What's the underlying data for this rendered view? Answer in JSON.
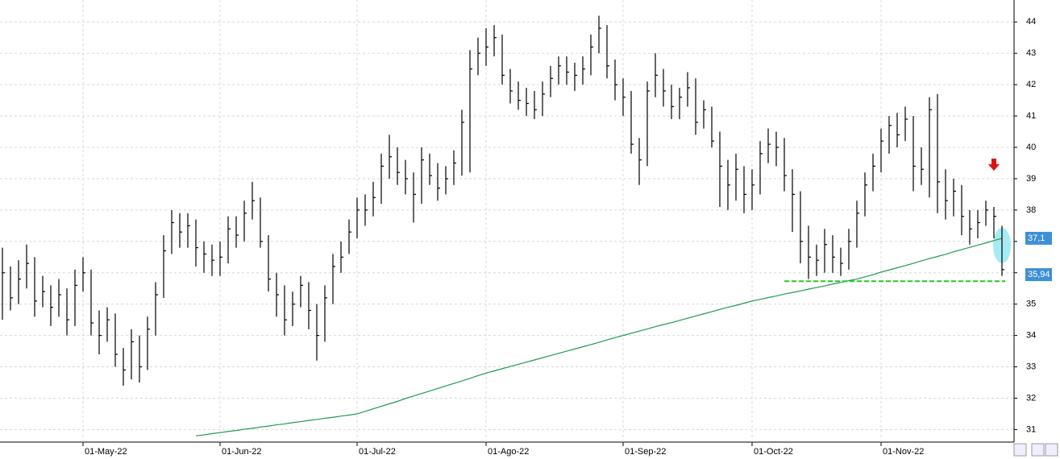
{
  "chart_data": {
    "type": "ohlc",
    "categories": [
      null,
      null,
      null,
      null,
      null,
      null,
      null,
      null,
      null,
      null,
      "01-May-22",
      null,
      null,
      null,
      null,
      null,
      null,
      null,
      null,
      null,
      null,
      null,
      null,
      null,
      null,
      null,
      null,
      "01-Jun-22",
      null,
      null,
      null,
      null,
      null,
      null,
      null,
      null,
      null,
      null,
      null,
      null,
      null,
      null,
      null,
      null,
      "01-Jul-22",
      null,
      null,
      null,
      null,
      null,
      null,
      null,
      null,
      null,
      null,
      null,
      null,
      null,
      null,
      null,
      "01-Ago-22",
      null,
      null,
      null,
      null,
      null,
      null,
      null,
      null,
      null,
      null,
      null,
      null,
      null,
      null,
      null,
      null,
      "01-Sep-22",
      null,
      null,
      null,
      null,
      null,
      null,
      null,
      null,
      null,
      null,
      null,
      null,
      null,
      null,
      null,
      "01-Oct-22",
      null,
      null,
      null,
      null,
      null,
      null,
      null,
      null,
      null,
      null,
      null,
      null,
      null,
      null,
      null,
      "01-Nov-22",
      null,
      null,
      null,
      null,
      null,
      null,
      null,
      null,
      null,
      null,
      null,
      null,
      null,
      null,
      null
    ],
    "high": [
      36.8,
      36.2,
      36.4,
      36.9,
      36.5,
      35.9,
      35.6,
      35.8,
      35.5,
      36.1,
      36.5,
      36.1,
      34.8,
      34.9,
      34.7,
      33.6,
      34.2,
      34.0,
      34.6,
      35.7,
      37.2,
      38.0,
      37.9,
      37.9,
      37.7,
      37.0,
      36.9,
      37.0,
      37.8,
      37.8,
      38.3,
      38.9,
      38.4,
      37.2,
      36.0,
      35.6,
      35.4,
      35.9,
      35.7,
      35.0,
      35.6,
      36.6,
      37.0,
      37.7,
      38.4,
      38.5,
      38.9,
      39.8,
      40.4,
      40.0,
      39.6,
      39.2,
      40.0,
      39.8,
      39.5,
      39.4,
      39.9,
      41.2,
      43.1,
      43.5,
      43.8,
      43.9,
      43.6,
      42.5,
      42.1,
      41.9,
      41.8,
      42.1,
      42.6,
      42.9,
      42.9,
      42.7,
      42.9,
      43.6,
      44.2,
      43.9,
      42.8,
      42.2,
      41.8,
      40.3,
      42.1,
      43.0,
      42.5,
      42.0,
      41.9,
      42.4,
      42.2,
      41.5,
      41.3,
      40.5,
      39.6,
      39.8,
      39.4,
      39.3,
      40.2,
      40.6,
      40.5,
      40.3,
      39.3,
      38.6,
      37.5,
      36.9,
      37.4,
      37.2,
      36.8,
      37.4,
      38.3,
      39.2,
      39.8,
      40.6,
      41.0,
      41.1,
      41.3,
      41.0,
      40.0,
      41.6,
      41.7,
      39.3,
      39.0,
      38.8,
      38.0,
      38.0,
      38.3,
      38.1,
      37.5
    ],
    "low": [
      34.5,
      34.8,
      35.0,
      35.5,
      34.6,
      34.9,
      34.3,
      34.6,
      34.0,
      34.3,
      35.4,
      34.0,
      33.4,
      33.8,
      33.0,
      32.4,
      32.6,
      32.5,
      32.9,
      34.0,
      35.2,
      36.6,
      36.8,
      36.8,
      36.2,
      36.0,
      35.9,
      35.9,
      36.3,
      36.8,
      37.0,
      37.7,
      36.8,
      35.4,
      34.6,
      34.0,
      34.3,
      34.9,
      34.2,
      33.2,
      33.8,
      35.0,
      36.0,
      36.6,
      37.1,
      37.5,
      37.8,
      38.2,
      39.0,
      38.8,
      38.5,
      37.6,
      38.2,
      38.8,
      38.3,
      38.5,
      38.8,
      39.1,
      39.2,
      42.3,
      42.6,
      42.9,
      42.0,
      41.4,
      41.2,
      41.0,
      40.9,
      41.0,
      41.6,
      42.0,
      42.0,
      41.8,
      42.0,
      42.3,
      43.0,
      42.2,
      41.5,
      41.0,
      39.8,
      38.8,
      39.4,
      41.6,
      41.3,
      40.9,
      40.9,
      41.3,
      40.4,
      40.6,
      40.0,
      38.1,
      38.0,
      38.3,
      37.9,
      38.0,
      38.5,
      39.5,
      39.4,
      38.6,
      37.3,
      36.3,
      35.8,
      35.9,
      36.0,
      36.0,
      35.9,
      36.1,
      36.8,
      37.8,
      38.6,
      39.2,
      39.8,
      40.0,
      40.2,
      38.6,
      38.8,
      38.4,
      37.9,
      37.7,
      37.8,
      37.2,
      36.9,
      37.1,
      37.5,
      37.1,
      35.9
    ],
    "close": [
      36.0,
      35.2,
      35.8,
      36.3,
      35.1,
      35.4,
      34.9,
      35.3,
      34.5,
      35.6,
      36.0,
      34.4,
      34.0,
      34.5,
      33.4,
      32.9,
      33.8,
      33.0,
      34.2,
      35.3,
      36.7,
      37.6,
      37.3,
      37.5,
      36.8,
      36.6,
      36.4,
      36.5,
      37.4,
      37.2,
      37.9,
      38.3,
      37.0,
      35.8,
      35.3,
      34.5,
      35.0,
      35.6,
      34.8,
      34.0,
      35.2,
      36.2,
      36.5,
      37.3,
      38.0,
      38.0,
      38.4,
      39.4,
      39.7,
      39.2,
      39.0,
      38.5,
      39.6,
      39.1,
      38.7,
      39.0,
      39.5,
      40.8,
      42.5,
      43.0,
      43.2,
      43.5,
      42.3,
      41.8,
      41.5,
      41.4,
      41.2,
      41.7,
      42.2,
      42.6,
      42.4,
      42.3,
      42.5,
      43.2,
      43.8,
      42.6,
      42.0,
      41.6,
      40.1,
      39.6,
      41.8,
      42.3,
      41.8,
      41.3,
      41.6,
      41.9,
      40.8,
      41.2,
      40.2,
      39.4,
      38.8,
      39.3,
      38.5,
      38.8,
      39.8,
      40.1,
      40.0,
      39.1,
      38.5,
      37.0,
      36.5,
      36.4,
      36.9,
      36.5,
      36.3,
      37.0,
      37.9,
      38.8,
      39.4,
      40.2,
      40.7,
      40.4,
      40.9,
      39.4,
      39.3,
      41.2,
      38.9,
      38.3,
      38.6,
      37.8,
      37.4,
      37.6,
      38.0,
      37.8,
      36.1
    ],
    "bar_color": "#000000",
    "moving_average": {
      "color": "#1e9a50",
      "values": [
        null,
        null,
        null,
        null,
        null,
        null,
        null,
        null,
        null,
        null,
        null,
        null,
        null,
        null,
        null,
        null,
        null,
        null,
        null,
        null,
        null,
        null,
        null,
        null,
        30.8,
        30.83,
        30.87,
        30.9,
        30.94,
        30.97,
        31.01,
        31.04,
        31.08,
        31.11,
        31.15,
        31.18,
        31.22,
        31.25,
        31.29,
        31.32,
        31.36,
        31.39,
        31.43,
        31.46,
        31.5,
        31.58,
        31.66,
        31.74,
        31.82,
        31.9,
        31.99,
        32.07,
        32.15,
        32.23,
        32.31,
        32.39,
        32.47,
        32.55,
        32.63,
        32.72,
        32.8,
        32.87,
        32.94,
        33.01,
        33.08,
        33.15,
        33.22,
        33.29,
        33.36,
        33.43,
        33.5,
        33.57,
        33.64,
        33.71,
        33.78,
        33.86,
        33.93,
        34.0,
        34.07,
        34.14,
        34.21,
        34.28,
        34.35,
        34.41,
        34.48,
        34.55,
        34.62,
        34.69,
        34.76,
        34.83,
        34.9,
        34.96,
        35.03,
        35.1,
        35.15,
        35.21,
        35.26,
        35.32,
        35.37,
        35.42,
        35.48,
        35.53,
        35.58,
        35.64,
        35.69,
        35.75,
        35.8,
        35.87,
        35.94,
        36.02,
        36.09,
        36.16,
        36.23,
        36.3,
        36.38,
        36.45,
        36.52,
        36.59,
        36.67,
        36.74,
        36.81,
        36.88,
        36.95,
        37.03,
        37.1
      ]
    },
    "support": {
      "value": 35.73,
      "color": "#22c922"
    },
    "price_tags": [
      {
        "value": 37.1,
        "label": "37,1",
        "color": "#3d8fd6"
      },
      {
        "value": 35.94,
        "label": "35,94",
        "color": "#3d8fd6"
      }
    ],
    "ylim": [
      30.6,
      44.7
    ],
    "yticks": [
      31,
      32,
      33,
      34,
      35,
      36,
      37,
      38,
      39,
      40,
      41,
      42,
      43,
      44
    ],
    "grid": true
  }
}
